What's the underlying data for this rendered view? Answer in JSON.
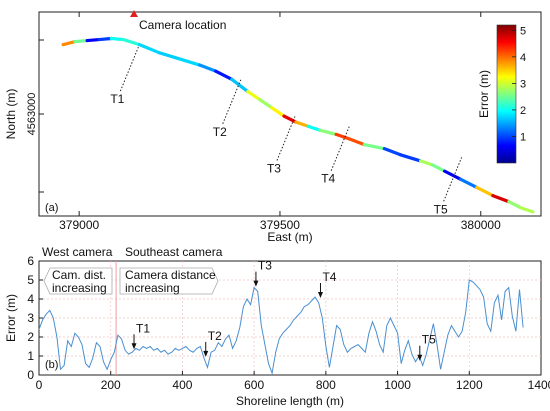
{
  "chart_data": [
    {
      "type": "line",
      "panel_label": "(a)",
      "xlabel": "East (m)",
      "ylabel": "North (m)",
      "xlim": [
        378900,
        380150
      ],
      "x_ticks": [
        379000,
        379500,
        380000
      ],
      "y_tick_labels": [
        "4563000"
      ],
      "grid": false,
      "camera_marker": {
        "label": "Camera location",
        "x": 379070,
        "color": "#e02020"
      },
      "colorbar": {
        "label": "Error (m)",
        "ticks": [
          1,
          2,
          3,
          4,
          5
        ],
        "range": [
          0,
          5.2
        ],
        "colormap": "jet",
        "placement": "top-right"
      },
      "transects": [
        {
          "label": "T1",
          "x": 379125,
          "y_frac": 0.72
        },
        {
          "label": "T2",
          "x": 379380,
          "y_frac": 0.56
        },
        {
          "label": "T3",
          "x": 379515,
          "y_frac": 0.38
        },
        {
          "label": "T4",
          "x": 379650,
          "y_frac": 0.33
        },
        {
          "label": "T5",
          "x": 379930,
          "y_frac": 0.18
        }
      ],
      "shoreline": [
        {
          "x": 378960,
          "y": 0.84,
          "err": 3.5
        },
        {
          "x": 378990,
          "y": 0.855,
          "err": 4.2
        },
        {
          "x": 379020,
          "y": 0.86,
          "err": 0.8
        },
        {
          "x": 379050,
          "y": 0.865,
          "err": 0.4
        },
        {
          "x": 379080,
          "y": 0.87,
          "err": 1.5
        },
        {
          "x": 379110,
          "y": 0.865,
          "err": 2.5
        },
        {
          "x": 379150,
          "y": 0.84,
          "err": 1.8
        },
        {
          "x": 379200,
          "y": 0.8,
          "err": 1.7
        },
        {
          "x": 379250,
          "y": 0.77,
          "err": 1.7
        },
        {
          "x": 379300,
          "y": 0.74,
          "err": 1.8
        },
        {
          "x": 379340,
          "y": 0.71,
          "err": 1.0
        },
        {
          "x": 379380,
          "y": 0.67,
          "err": 0.5
        },
        {
          "x": 379420,
          "y": 0.61,
          "err": 2.8
        },
        {
          "x": 379450,
          "y": 0.57,
          "err": 3.5
        },
        {
          "x": 379480,
          "y": 0.53,
          "err": 2.0
        },
        {
          "x": 379510,
          "y": 0.49,
          "err": 4.6
        },
        {
          "x": 379540,
          "y": 0.46,
          "err": 4.8
        },
        {
          "x": 379570,
          "y": 0.44,
          "err": 2.5
        },
        {
          "x": 379600,
          "y": 0.42,
          "err": 1.5
        },
        {
          "x": 379640,
          "y": 0.4,
          "err": 3.8
        },
        {
          "x": 379670,
          "y": 0.38,
          "err": 4.7
        },
        {
          "x": 379710,
          "y": 0.35,
          "err": 3.6
        },
        {
          "x": 379760,
          "y": 0.33,
          "err": 1.5
        },
        {
          "x": 379800,
          "y": 0.3,
          "err": 0.5
        },
        {
          "x": 379850,
          "y": 0.27,
          "err": 1.4
        },
        {
          "x": 379880,
          "y": 0.25,
          "err": 4.2
        },
        {
          "x": 379910,
          "y": 0.22,
          "err": 0.9
        },
        {
          "x": 379950,
          "y": 0.18,
          "err": 0.3
        },
        {
          "x": 379990,
          "y": 0.14,
          "err": 2.2
        },
        {
          "x": 380030,
          "y": 0.1,
          "err": 4.9
        },
        {
          "x": 380070,
          "y": 0.07,
          "err": 4.6
        },
        {
          "x": 380100,
          "y": 0.04,
          "err": 0.8
        },
        {
          "x": 380130,
          "y": 0.02,
          "err": 4.9
        }
      ]
    },
    {
      "type": "line",
      "panel_label": "(b)",
      "xlabel": "Shoreline length (m)",
      "ylabel": "Error (m)",
      "xlim": [
        0,
        1400
      ],
      "ylim": [
        0,
        6
      ],
      "x_ticks": [
        0,
        200,
        400,
        600,
        800,
        1000,
        1200,
        1400
      ],
      "y_ticks": [
        0,
        1,
        2,
        3,
        4,
        5,
        6
      ],
      "grid": true,
      "camera_split_x": 215,
      "camera_labels": {
        "west": "West camera",
        "southeast": "Southeast camera"
      },
      "direction_notes": {
        "west": "Cam. dist. increasing",
        "southeast": "Camera distance increasing"
      },
      "series": [
        {
          "color": "#4a8fd0",
          "x": [
            0,
            10,
            20,
            30,
            40,
            50,
            60,
            70,
            80,
            90,
            100,
            110,
            120,
            130,
            140,
            150,
            160,
            170,
            180,
            190,
            200,
            210,
            220,
            230,
            240,
            250,
            260,
            270,
            280,
            290,
            300,
            310,
            320,
            330,
            340,
            350,
            360,
            370,
            380,
            390,
            400,
            410,
            420,
            430,
            440,
            450,
            460,
            470,
            480,
            490,
            500,
            510,
            520,
            530,
            540,
            550,
            560,
            570,
            580,
            590,
            600,
            610,
            620,
            630,
            640,
            650,
            660,
            670,
            680,
            690,
            700,
            710,
            720,
            730,
            740,
            750,
            760,
            770,
            780,
            790,
            800,
            810,
            820,
            830,
            840,
            850,
            860,
            870,
            880,
            890,
            900,
            910,
            920,
            930,
            940,
            950,
            960,
            970,
            980,
            990,
            1000,
            1010,
            1020,
            1030,
            1040,
            1050,
            1060,
            1070,
            1080,
            1090,
            1100,
            1110,
            1120,
            1130,
            1140,
            1150,
            1160,
            1170,
            1180,
            1190,
            1200,
            1210,
            1220,
            1230,
            1240,
            1250,
            1260,
            1270,
            1280,
            1290,
            1300,
            1310,
            1320,
            1330,
            1340,
            1350
          ],
          "y": [
            2.4,
            2.9,
            3.2,
            3.4,
            3.0,
            2.0,
            0.3,
            0.5,
            1.8,
            1.5,
            2.2,
            2.0,
            1.6,
            0.6,
            0.4,
            0.9,
            1.7,
            1.5,
            0.7,
            0.3,
            0.8,
            1.2,
            2.1,
            1.9,
            1.3,
            1.1,
            1.2,
            1.4,
            1.3,
            1.5,
            1.4,
            1.5,
            1.3,
            1.4,
            1.2,
            1.3,
            1.1,
            1.2,
            1.4,
            1.3,
            1.4,
            1.5,
            1.3,
            1.2,
            1.4,
            1.5,
            0.9,
            0.4,
            1.2,
            1.3,
            1.7,
            1.5,
            1.9,
            2.1,
            1.4,
            1.8,
            2.5,
            3.6,
            4.0,
            3.7,
            4.6,
            4.4,
            2.6,
            1.6,
            0.6,
            0.1,
            1.2,
            1.9,
            2.2,
            2.4,
            2.6,
            2.9,
            3.1,
            3.3,
            3.6,
            3.7,
            3.9,
            4.1,
            3.8,
            3.0,
            1.5,
            0.4,
            1.5,
            2.6,
            2.4,
            1.6,
            1.2,
            1.4,
            1.5,
            1.6,
            1.4,
            1.2,
            2.2,
            2.8,
            2.3,
            1.6,
            1.2,
            2.6,
            3.0,
            2.6,
            2.2,
            0.6,
            1.3,
            1.8,
            1.1,
            0.7,
            1.0,
            0.5,
            1.1,
            1.9,
            2.7,
            1.6,
            0.3,
            1.2,
            2.1,
            2.6,
            2.3,
            2.0,
            2.3,
            3.3,
            5.0,
            4.9,
            4.7,
            4.5,
            4.1,
            2.7,
            2.3,
            3.8,
            4.2,
            2.9,
            4.4,
            4.6,
            3.1,
            2.3,
            4.5,
            2.5
          ]
        }
      ],
      "annotations": [
        {
          "label": "T1",
          "x": 265,
          "y": 1.3
        },
        {
          "label": "T2",
          "x": 465,
          "y": 0.9
        },
        {
          "label": "T3",
          "x": 605,
          "y": 4.6
        },
        {
          "label": "T4",
          "x": 785,
          "y": 4.0
        },
        {
          "label": "T5",
          "x": 1062,
          "y": 0.7
        }
      ]
    }
  ]
}
